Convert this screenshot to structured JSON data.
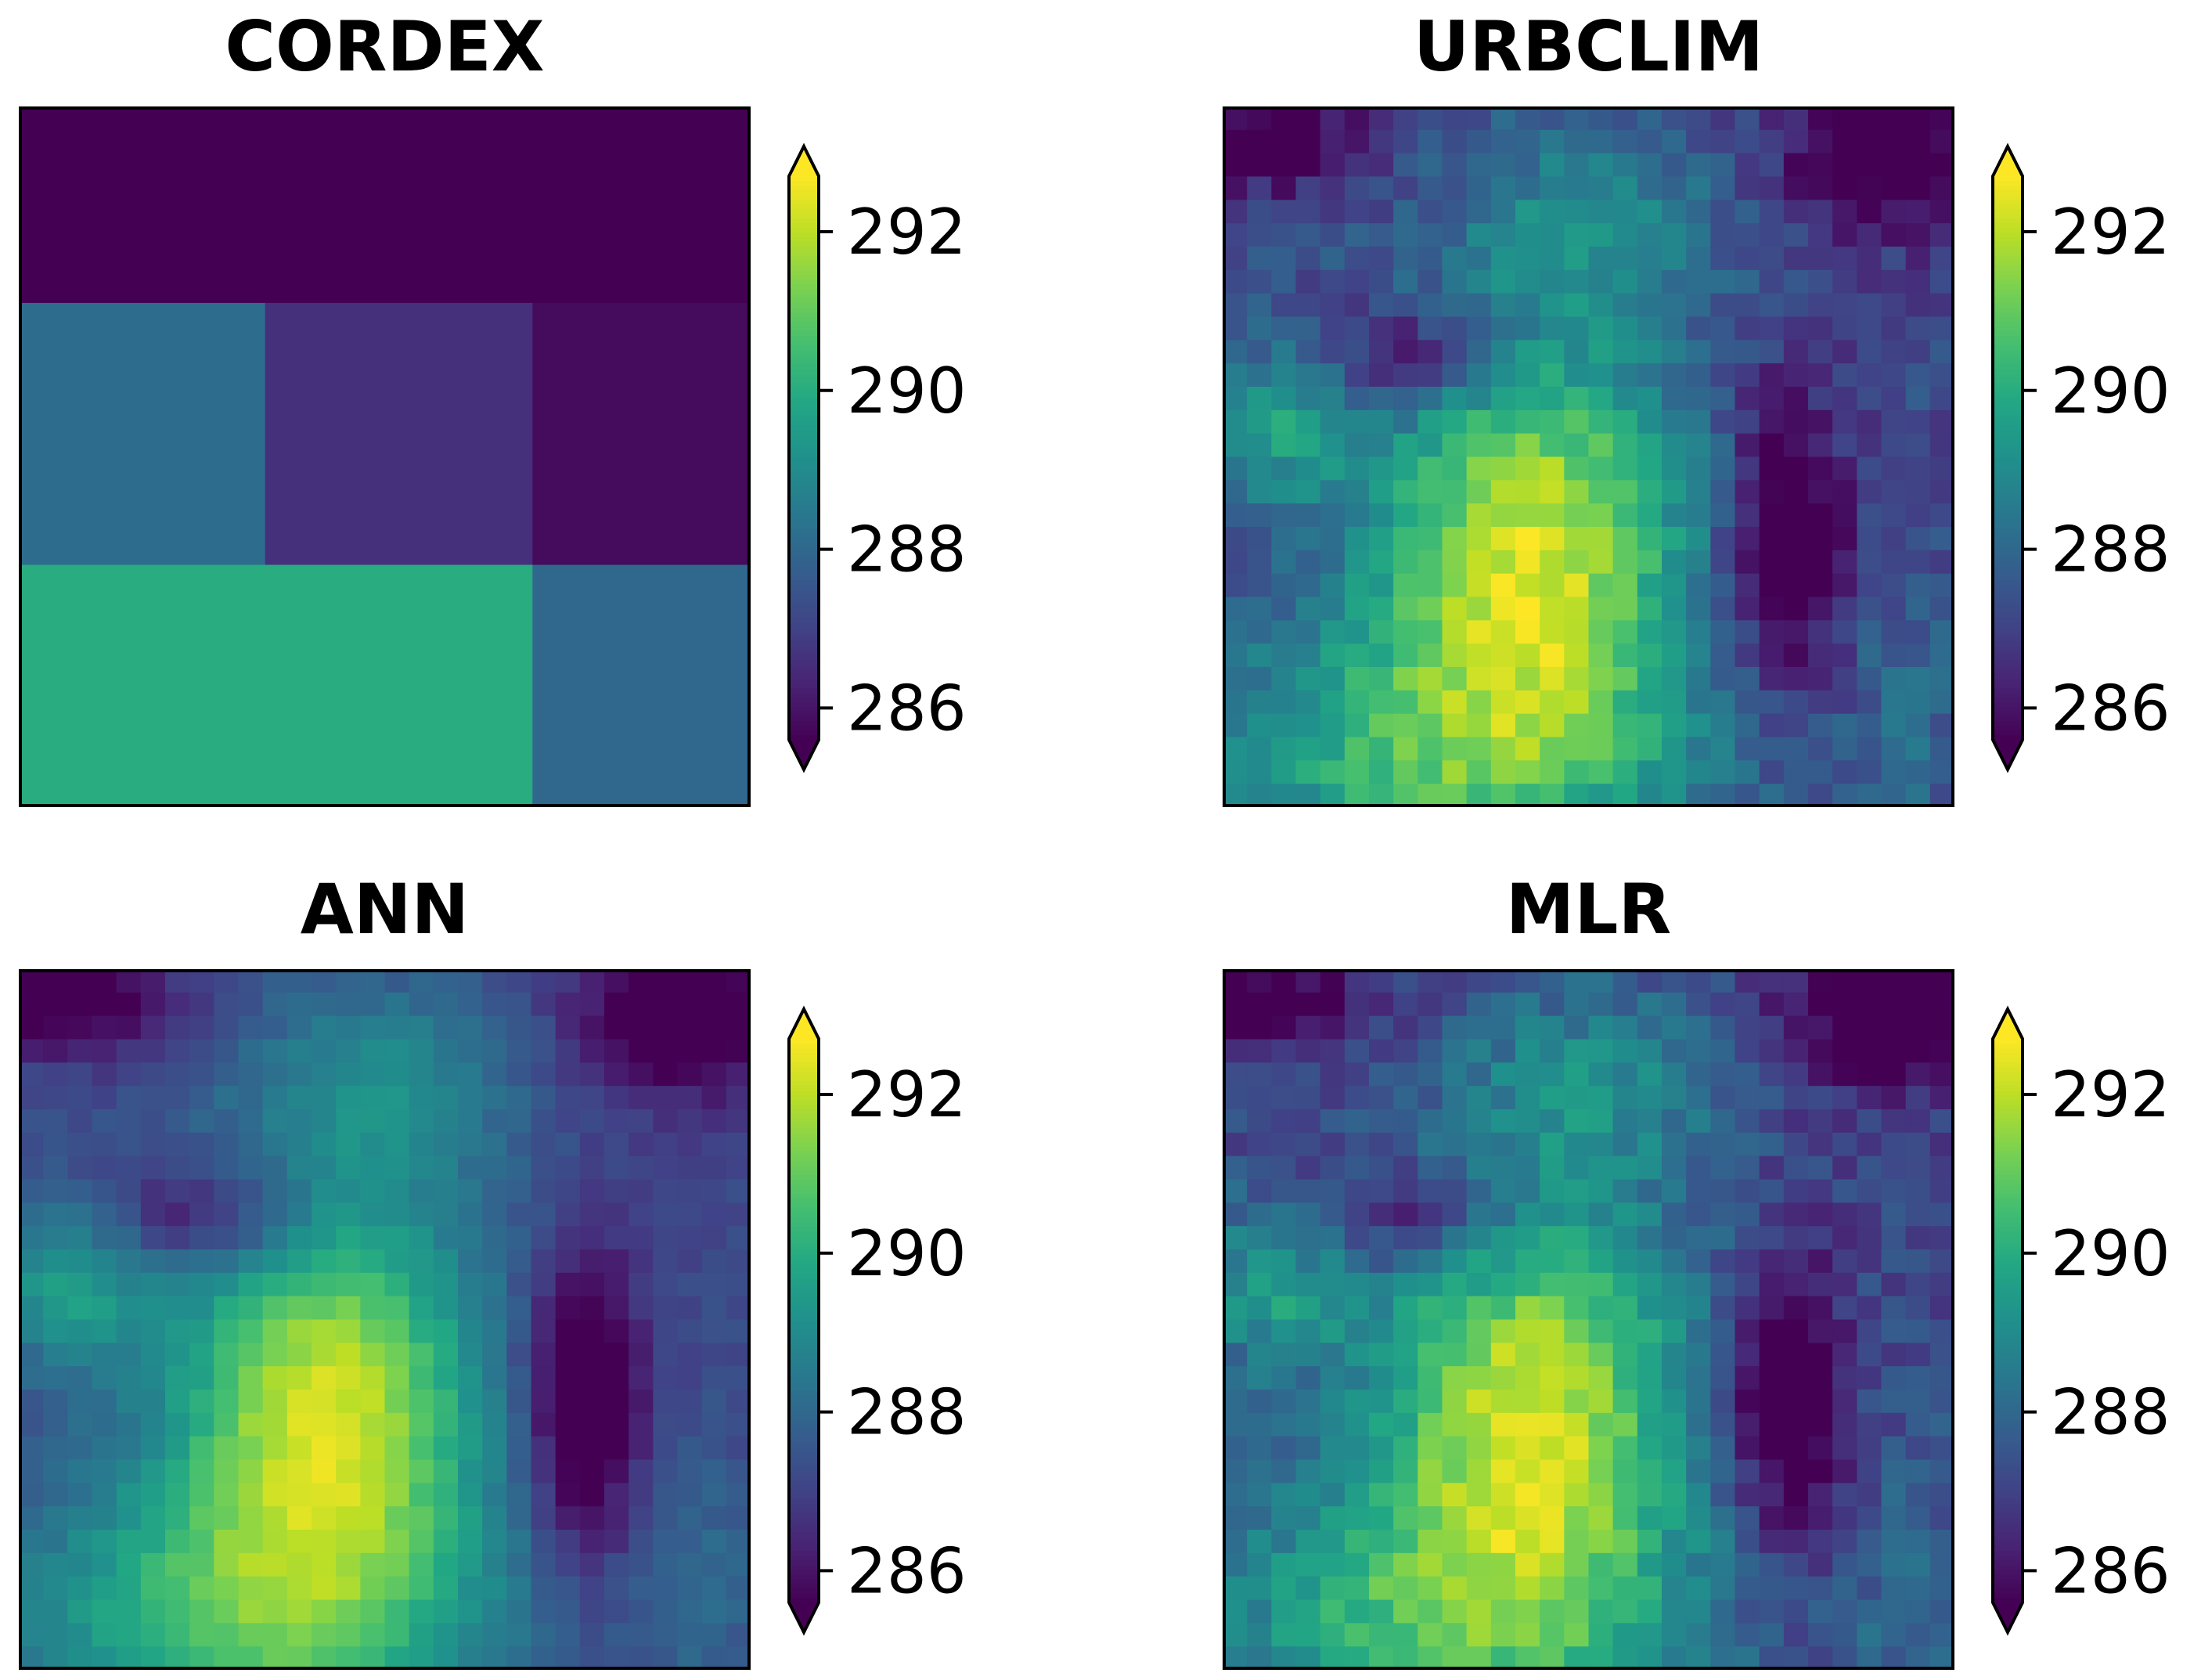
{
  "chart_data": [
    {
      "type": "heatmap",
      "title": "CORDEX",
      "colormap": "viridis",
      "extend": "both",
      "vmin": 285.6,
      "vmax": 292.7,
      "colorbar_ticks": [
        "292",
        "290",
        "288",
        "286"
      ],
      "grid": [
        [
          285.6,
          285.6,
          285.6
        ],
        [
          288.1,
          286.6,
          285.8
        ],
        [
          290.0,
          290.0,
          288.0
        ]
      ],
      "grid_rows_heights": [
        3,
        4,
        3.7
      ],
      "grid_cols_widths": [
        3.5,
        3.8,
        3.1
      ]
    },
    {
      "type": "heatmap",
      "title": "URBCLIM",
      "colormap": "viridis",
      "extend": "both",
      "vmin": 285.6,
      "vmax": 292.7,
      "colorbar_ticks": [
        "292",
        "290",
        "288",
        "286"
      ]
    },
    {
      "type": "heatmap",
      "title": "ANN",
      "colormap": "viridis",
      "extend": "both",
      "vmin": 285.6,
      "vmax": 292.7,
      "colorbar_ticks": [
        "292",
        "290",
        "288",
        "286"
      ]
    },
    {
      "type": "heatmap",
      "title": "MLR",
      "colormap": "viridis",
      "extend": "both",
      "vmin": 285.6,
      "vmax": 292.7,
      "colorbar_ticks": [
        "292",
        "290",
        "288",
        "286"
      ]
    }
  ]
}
